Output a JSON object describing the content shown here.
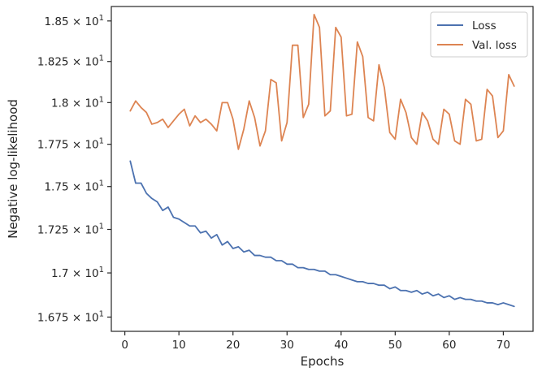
{
  "chart_data": {
    "type": "line",
    "xlabel": "Epochs",
    "ylabel": "Negative log-likelihood",
    "xlim": [
      -2.5,
      75.5
    ],
    "ylim": [
      16.67,
      18.59
    ],
    "y_scale": "log",
    "grid": false,
    "legend_position": "top-right",
    "x_ticks": [
      {
        "value": 0,
        "label": "0"
      },
      {
        "value": 10,
        "label": "10"
      },
      {
        "value": 20,
        "label": "20"
      },
      {
        "value": 30,
        "label": "30"
      },
      {
        "value": 40,
        "label": "40"
      },
      {
        "value": 50,
        "label": "50"
      },
      {
        "value": 60,
        "label": "60"
      },
      {
        "value": 70,
        "label": "70"
      }
    ],
    "y_ticks": [
      {
        "value": 16.75,
        "mantissa": "1.675",
        "base": "10",
        "exp": "1"
      },
      {
        "value": 17.0,
        "mantissa": "1.7",
        "base": "10",
        "exp": "1"
      },
      {
        "value": 17.25,
        "mantissa": "1.725",
        "base": "10",
        "exp": "1"
      },
      {
        "value": 17.5,
        "mantissa": "1.75",
        "base": "10",
        "exp": "1"
      },
      {
        "value": 17.75,
        "mantissa": "1.775",
        "base": "10",
        "exp": "1"
      },
      {
        "value": 18.0,
        "mantissa": "1.8",
        "base": "10",
        "exp": "1"
      },
      {
        "value": 18.25,
        "mantissa": "1.825",
        "base": "10",
        "exp": "1"
      },
      {
        "value": 18.5,
        "mantissa": "1.85",
        "base": "10",
        "exp": "1"
      }
    ],
    "x": [
      1,
      2,
      3,
      4,
      5,
      6,
      7,
      8,
      9,
      10,
      11,
      12,
      13,
      14,
      15,
      16,
      17,
      18,
      19,
      20,
      21,
      22,
      23,
      24,
      25,
      26,
      27,
      28,
      29,
      30,
      31,
      32,
      33,
      34,
      35,
      36,
      37,
      38,
      39,
      40,
      41,
      42,
      43,
      44,
      45,
      46,
      47,
      48,
      49,
      50,
      51,
      52,
      53,
      54,
      55,
      56,
      57,
      58,
      59,
      60,
      61,
      62,
      63,
      64,
      65,
      66,
      67,
      68,
      69,
      70,
      71,
      72
    ],
    "series": [
      {
        "name": "Loss",
        "color": "#4c72b0",
        "values": [
          17.65,
          17.52,
          17.52,
          17.46,
          17.43,
          17.41,
          17.36,
          17.38,
          17.32,
          17.31,
          17.29,
          17.27,
          17.27,
          17.23,
          17.24,
          17.2,
          17.22,
          17.16,
          17.18,
          17.14,
          17.15,
          17.12,
          17.13,
          17.1,
          17.1,
          17.09,
          17.09,
          17.07,
          17.07,
          17.05,
          17.05,
          17.03,
          17.03,
          17.02,
          17.02,
          17.01,
          17.01,
          16.99,
          16.99,
          16.98,
          16.97,
          16.96,
          16.95,
          16.95,
          16.94,
          16.94,
          16.93,
          16.93,
          16.91,
          16.92,
          16.9,
          16.9,
          16.89,
          16.9,
          16.88,
          16.89,
          16.87,
          16.88,
          16.86,
          16.87,
          16.85,
          16.86,
          16.85,
          16.85,
          16.84,
          16.84,
          16.83,
          16.83,
          16.82,
          16.83,
          16.82,
          16.81
        ]
      },
      {
        "name": "Val. loss",
        "color": "#dd8452",
        "values": [
          17.95,
          18.01,
          17.97,
          17.94,
          17.87,
          17.88,
          17.9,
          17.85,
          17.89,
          17.93,
          17.96,
          17.86,
          17.92,
          17.88,
          17.9,
          17.87,
          17.83,
          18.0,
          18.0,
          17.9,
          17.72,
          17.84,
          18.01,
          17.91,
          17.74,
          17.83,
          18.14,
          18.12,
          17.77,
          17.88,
          18.35,
          18.35,
          17.91,
          17.99,
          18.54,
          18.46,
          17.92,
          17.95,
          18.46,
          18.4,
          17.92,
          17.93,
          18.37,
          18.28,
          17.91,
          17.89,
          18.23,
          18.09,
          17.82,
          17.78,
          18.02,
          17.94,
          17.79,
          17.75,
          17.94,
          17.89,
          17.78,
          17.75,
          17.96,
          17.93,
          17.77,
          17.75,
          18.02,
          17.99,
          17.77,
          17.78,
          18.08,
          18.04,
          17.79,
          17.83,
          18.17,
          18.1
        ]
      }
    ]
  }
}
